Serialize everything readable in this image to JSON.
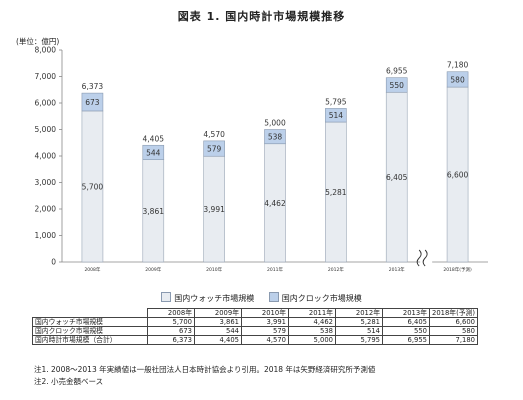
{
  "title": "図表 1. 国内時計市場規模推移",
  "unit_label": "(単位：億円)",
  "chart_data": {
    "type": "bar",
    "stacked": true,
    "categories": [
      "2008年",
      "2009年",
      "2010年",
      "2011年",
      "2012年",
      "2013年",
      "2018年(予測)"
    ],
    "series": [
      {
        "name": "国内ウォッチ市場規模",
        "values": [
          5700,
          3861,
          3991,
          4462,
          5281,
          6405,
          6600
        ],
        "color": "#e8ecf1"
      },
      {
        "name": "国内クロック市場規模",
        "values": [
          673,
          544,
          579,
          538,
          514,
          550,
          580
        ],
        "color": "#bcd0ea"
      }
    ],
    "totals": [
      6373,
      4405,
      4570,
      5000,
      5795,
      6955,
      7180
    ],
    "totals_labels": [
      "6,373",
      "4,405",
      "4,570",
      "5,000",
      "5,795",
      "6,955",
      "7,180"
    ],
    "watch_labels": [
      "5,700",
      "3,861",
      "3,991",
      "4,462",
      "5,281",
      "6,405",
      "6,600"
    ],
    "clock_labels": [
      "673",
      "544",
      "579",
      "538",
      "514",
      "550",
      "580"
    ],
    "yticks": [
      "0",
      "1,000",
      "2,000",
      "3,000",
      "4,000",
      "5,000",
      "6,000",
      "7,000",
      "8,000"
    ],
    "ylim": [
      0,
      8000
    ],
    "axis_break_between": [
      "2013年",
      "2018年(予測)"
    ],
    "legend_position": "bottom"
  },
  "table": {
    "headers": [
      "2008年",
      "2009年",
      "2010年",
      "2011年",
      "2012年",
      "2013年",
      "2018年(予測)"
    ],
    "rows": [
      {
        "label": "国内ウォッチ市場規模",
        "values": [
          "5,700",
          "3,861",
          "3,991",
          "4,462",
          "5,281",
          "6,405",
          "6,600"
        ]
      },
      {
        "label": "国内クロック市場規模",
        "values": [
          "673",
          "544",
          "579",
          "538",
          "514",
          "550",
          "580"
        ]
      },
      {
        "label": "国内時計市場規模（合計）",
        "values": [
          "6,373",
          "4,405",
          "4,570",
          "5,000",
          "5,795",
          "6,955",
          "7,180"
        ]
      }
    ]
  },
  "notes": [
    "注1. 2008～2013 年実績値は一般社団法人日本時計協会より引用。2018 年は矢野経済研究所予測値",
    "注2. 小売金額ベース"
  ]
}
